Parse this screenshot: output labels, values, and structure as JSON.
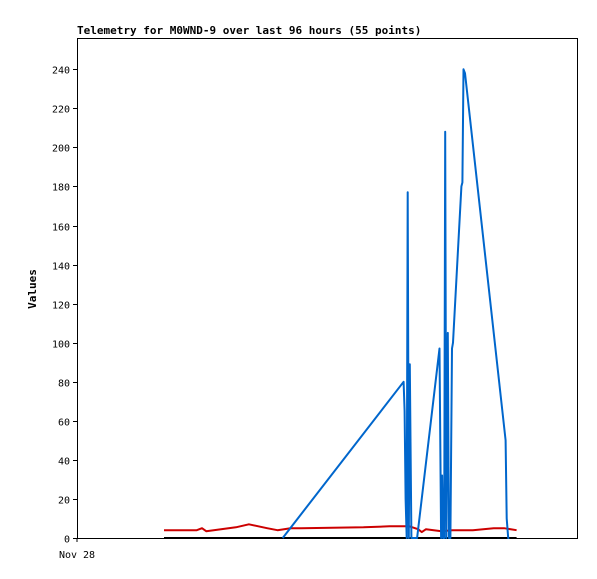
{
  "chart_data": {
    "type": "line",
    "title": "Telemetry for M0WND-9 over last 96 hours (55 points)",
    "xlabel": "",
    "ylabel": "Values",
    "x_tick_labels": [
      "Nov 28"
    ],
    "xlim": [
      0,
      96
    ],
    "ylim": [
      0,
      256
    ],
    "y_ticks": [
      0,
      20,
      40,
      60,
      80,
      100,
      120,
      140,
      160,
      180,
      200,
      220,
      240
    ],
    "grid": false,
    "series": [
      {
        "color": "#0066cc",
        "x": [
          39.5,
          62.7,
          62.9,
          63.1,
          63.3,
          63.5,
          63.7,
          63.9,
          64.2,
          65.3,
          69.6,
          69.9,
          70.1,
          70.3,
          70.5,
          70.7,
          70.9,
          71.2,
          71.4,
          71.7,
          72.0,
          72.2,
          73.8,
          74.0,
          74.2,
          74.5,
          82.3,
          82.5,
          82.8,
          83.0
        ],
        "y": [
          0,
          80,
          65,
          20,
          0,
          177,
          0,
          89,
          0,
          0,
          97,
          0,
          32,
          0,
          0,
          208,
          0,
          105,
          0,
          0,
          97,
          100,
          180,
          182,
          240,
          238,
          50,
          10,
          0,
          0
        ]
      },
      {
        "color": "#cc0000",
        "x": [
          16.7,
          23.0,
          24.0,
          24.8,
          30.5,
          33.0,
          36.5,
          38.5,
          41.0,
          43.0,
          55.0,
          60.0,
          63.8,
          65.5,
          66.2,
          67.0,
          68.5,
          70.0,
          72.0,
          76.0,
          80.0,
          82.0,
          84.4
        ],
        "y": [
          4,
          4,
          5,
          3.5,
          5.5,
          7,
          5,
          4,
          5,
          5,
          5.5,
          6,
          6,
          4.5,
          3,
          4.5,
          4,
          3.5,
          4,
          4,
          5,
          5,
          4
        ]
      },
      {
        "color": "#000000",
        "x": [
          16.7,
          84.4
        ],
        "y": [
          0,
          0
        ]
      }
    ]
  }
}
